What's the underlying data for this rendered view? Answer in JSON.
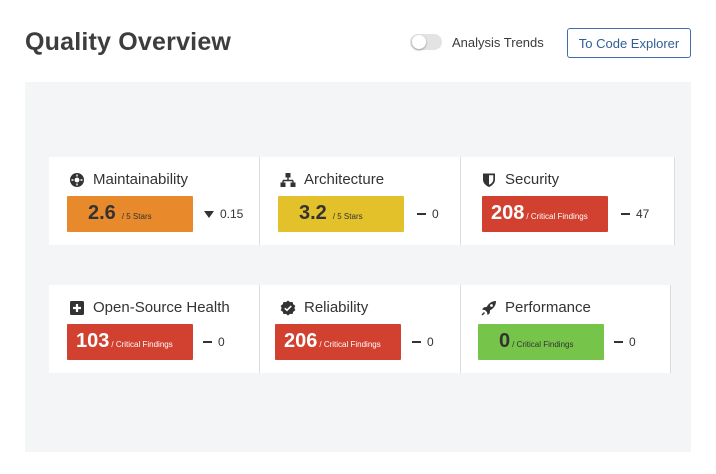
{
  "header": {
    "title": "Quality Overview",
    "toggle_label": "Analysis Trends",
    "toggle_on": false,
    "explorer_button": "To Code Explorer"
  },
  "colors": {
    "orange": "#e8892b",
    "yellow": "#e2c12a",
    "red": "#d2402f",
    "green": "#77c44a"
  },
  "cards": [
    {
      "title": "Maintainability",
      "icon": "brain-gear-icon",
      "value": "2.6",
      "unit": "/ 5 Stars",
      "delta": "0.15",
      "delta_dir": "down",
      "color": "orange"
    },
    {
      "title": "Architecture",
      "icon": "hierarchy-icon",
      "value": "3.2",
      "unit": "/ 5 Stars",
      "delta": "0",
      "delta_dir": "none",
      "color": "yellow"
    },
    {
      "title": "Security",
      "icon": "shield-icon",
      "value": "208",
      "unit": "/ Critical Findings",
      "delta": "47",
      "delta_dir": "none",
      "color": "red"
    },
    {
      "title": "Open-Source Health",
      "icon": "plus-box-icon",
      "value": "103",
      "unit": "/ Critical Findings",
      "delta": "0",
      "delta_dir": "none",
      "color": "red"
    },
    {
      "title": "Reliability",
      "icon": "badge-check-icon",
      "value": "206",
      "unit": "/ Critical Findings",
      "delta": "0",
      "delta_dir": "none",
      "color": "red"
    },
    {
      "title": "Performance",
      "icon": "rocket-icon",
      "value": "0",
      "unit": "/ Critical Findings",
      "delta": "0",
      "delta_dir": "none",
      "color": "green"
    }
  ]
}
